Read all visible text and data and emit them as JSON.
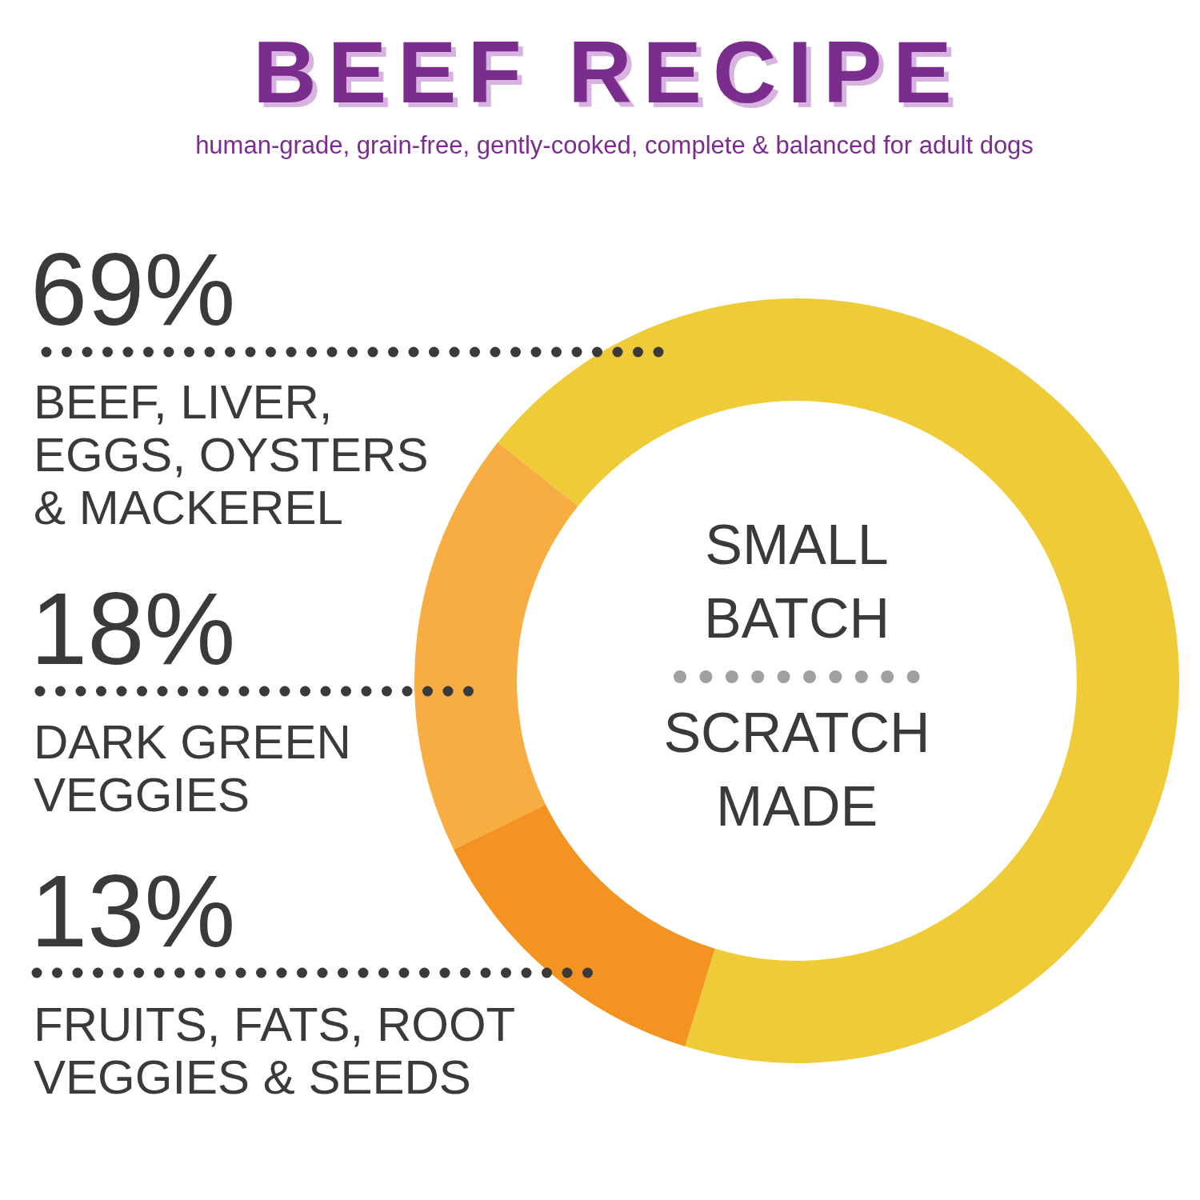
{
  "chart_data": {
    "type": "donut",
    "title": "BEEF RECIPE",
    "subtitle": "human-grade, grain-free, gently-cooked, complete & balanced for adult dogs",
    "categories": [
      "BEEF, LIVER,\nEGGS, OYSTERS\n& MACKEREL",
      "DARK GREEN\nVEGGIES",
      "FRUITS, FATS, ROOT\nVEGGIES & SEEDS"
    ],
    "values": [
      69,
      18,
      13
    ],
    "colors": [
      "#efcb38",
      "#f8ad42",
      "#f39322"
    ],
    "value_labels": [
      "69%",
      "18%",
      "13%"
    ],
    "annotations": [
      "SMALL\nBATCH",
      "SCRATCH\nMADE"
    ]
  }
}
